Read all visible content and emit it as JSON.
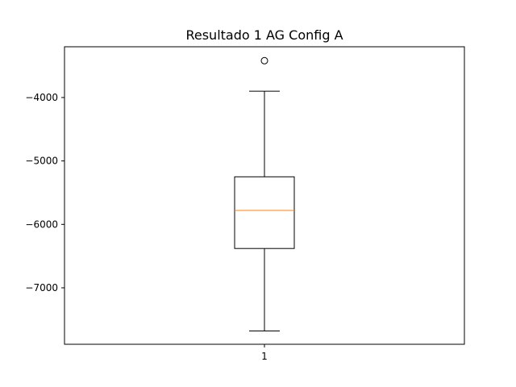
{
  "chart_data": {
    "type": "box",
    "title": "Resultado 1 AG Config A",
    "xlabel": "",
    "ylabel": "",
    "categories": [
      "1"
    ],
    "ylim": [
      -7890,
      -3200
    ],
    "y_ticks": [
      -4000,
      -5000,
      -6000,
      -7000
    ],
    "y_tick_labels": [
      "−4000",
      "−5000",
      "−6000",
      "−7000"
    ],
    "boxes": [
      {
        "label": "1",
        "whisker_low": -7680,
        "q1": -6380,
        "median": -5780,
        "q3": -5250,
        "whisker_high": -3900,
        "outliers": [
          -3420
        ]
      }
    ],
    "colors": {
      "box": "#000000",
      "median": "#ff7f0e",
      "axes": "#000000"
    },
    "grid": false
  }
}
